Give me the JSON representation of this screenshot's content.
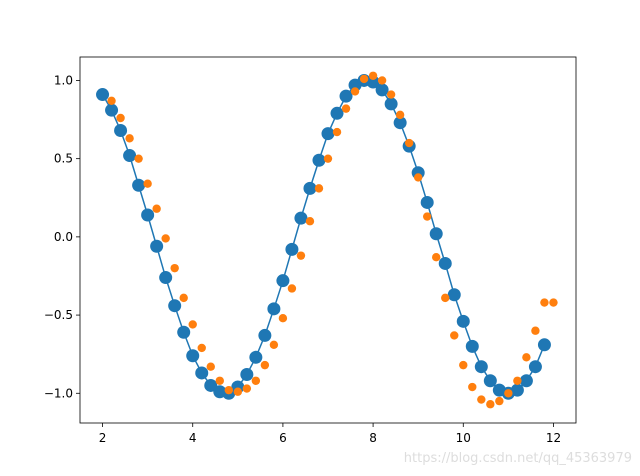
{
  "chart_data": {
    "type": "scatter",
    "xlim": [
      1.5,
      12.5
    ],
    "ylim": [
      -1.19,
      1.15
    ],
    "xticks": [
      2,
      4,
      6,
      8,
      10,
      12
    ],
    "yticks": [
      {
        "value": -1.0,
        "label": "−1.0"
      },
      {
        "value": -0.5,
        "label": "−0.5"
      },
      {
        "value": 0.0,
        "label": "0.0"
      },
      {
        "value": 0.5,
        "label": "0.5"
      },
      {
        "value": 1.0,
        "label": "1.0"
      }
    ],
    "series": [
      {
        "color": "#1f77b4",
        "line": true,
        "x": [
          2.0,
          2.2,
          2.4,
          2.6,
          2.8,
          3.0,
          3.2,
          3.4,
          3.6,
          3.8,
          4.0,
          4.2,
          4.4,
          4.6,
          4.8,
          5.0,
          5.2,
          5.4,
          5.6,
          5.8,
          6.0,
          6.2,
          6.4,
          6.6,
          6.8,
          7.0,
          7.2,
          7.4,
          7.6,
          7.8,
          8.0,
          8.2,
          8.4,
          8.6,
          8.8,
          9.0,
          9.2,
          9.4,
          9.6,
          9.8,
          10.0,
          10.2,
          10.4,
          10.6,
          10.8,
          11.0,
          11.2,
          11.4,
          11.6,
          11.8
        ],
        "values": [
          0.91,
          0.81,
          0.68,
          0.52,
          0.33,
          0.14,
          -0.06,
          -0.26,
          -0.44,
          -0.61,
          -0.76,
          -0.87,
          -0.95,
          -0.99,
          -1.0,
          -0.96,
          -0.88,
          -0.77,
          -0.63,
          -0.46,
          -0.28,
          -0.08,
          0.12,
          0.31,
          0.49,
          0.66,
          0.79,
          0.9,
          0.97,
          1.0,
          0.99,
          0.94,
          0.85,
          0.73,
          0.58,
          0.41,
          0.22,
          0.02,
          -0.17,
          -0.37,
          -0.54,
          -0.7,
          -0.83,
          -0.92,
          -0.98,
          -1.0,
          -0.98,
          -0.92,
          -0.83,
          -0.69
        ]
      },
      {
        "color": "#ff7f0e",
        "line": false,
        "x": [
          2.2,
          2.4,
          2.6,
          2.8,
          3.0,
          3.2,
          3.4,
          3.6,
          3.8,
          4.0,
          4.2,
          4.4,
          4.6,
          4.8,
          5.0,
          5.2,
          5.4,
          5.6,
          5.8,
          6.0,
          6.2,
          6.4,
          6.6,
          6.8,
          7.0,
          7.2,
          7.4,
          7.6,
          7.8,
          8.0,
          8.2,
          8.4,
          8.6,
          8.8,
          9.0,
          9.2,
          9.4,
          9.6,
          9.8,
          10.0,
          10.2,
          10.4,
          10.6,
          10.8,
          11.0,
          11.2,
          11.4,
          11.6,
          11.8,
          12.0
        ],
        "values": [
          0.87,
          0.76,
          0.63,
          0.5,
          0.34,
          0.18,
          -0.01,
          -0.2,
          -0.39,
          -0.56,
          -0.71,
          -0.83,
          -0.92,
          -0.98,
          -0.99,
          -0.97,
          -0.92,
          -0.82,
          -0.69,
          -0.52,
          -0.33,
          -0.12,
          0.1,
          0.31,
          0.5,
          0.67,
          0.82,
          0.93,
          1.01,
          1.03,
          1.0,
          0.91,
          0.78,
          0.6,
          0.38,
          0.13,
          -0.13,
          -0.39,
          -0.63,
          -0.82,
          -0.96,
          -1.04,
          -1.07,
          -1.05,
          -1.0,
          -0.92,
          -0.77,
          -0.6,
          -0.42,
          -0.42
        ]
      }
    ],
    "watermark": "https://blog.csdn.net/qq_45363979"
  }
}
